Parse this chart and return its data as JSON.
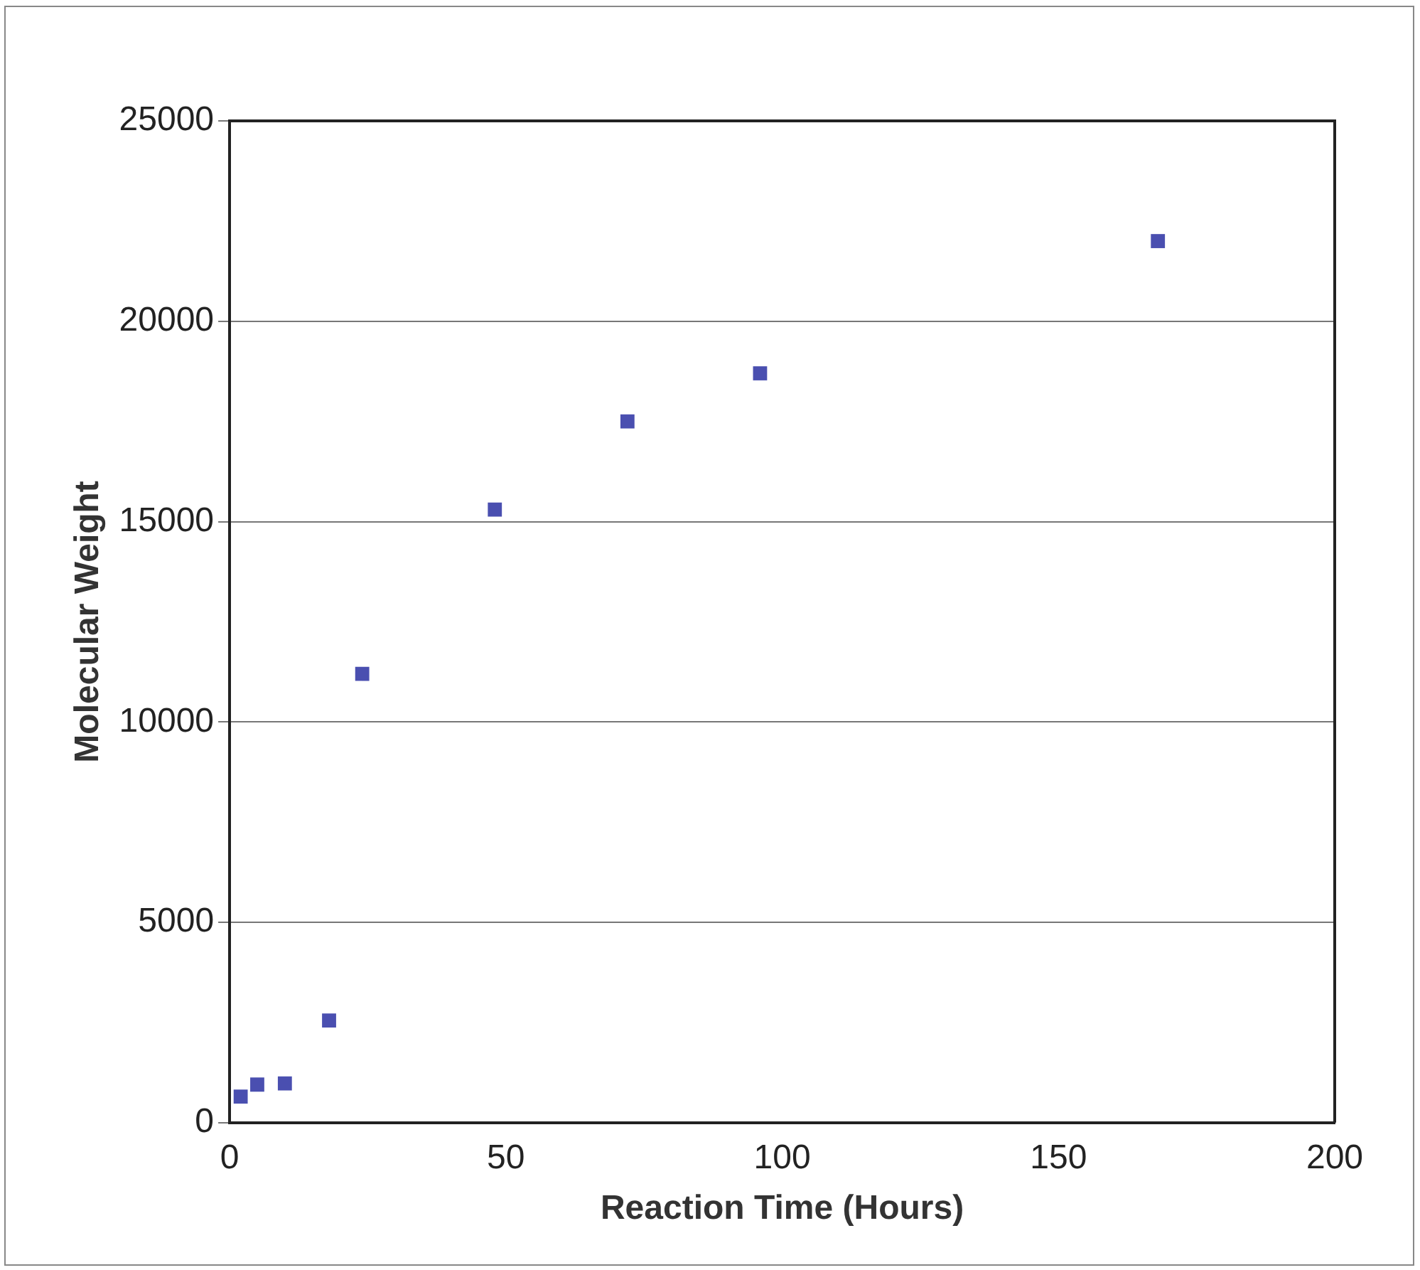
{
  "chart_data": {
    "type": "scatter",
    "xlabel": "Reaction Time (Hours)",
    "ylabel": "Molecular Weight",
    "x": [
      2,
      5,
      10,
      18,
      24,
      48,
      72,
      96,
      168
    ],
    "series": [
      {
        "color": "#4a4fb0",
        "values": [
          650,
          950,
          980,
          2550,
          11200,
          15300,
          17500,
          18700,
          22000
        ]
      }
    ],
    "xlim": [
      0,
      200
    ],
    "xticks": [
      0,
      50,
      100,
      150,
      200
    ],
    "ylim": [
      0,
      25000
    ],
    "yticks": [
      0,
      5000,
      10000,
      15000,
      20000,
      25000
    ],
    "grid": "y",
    "marker": "square",
    "legend": false
  }
}
